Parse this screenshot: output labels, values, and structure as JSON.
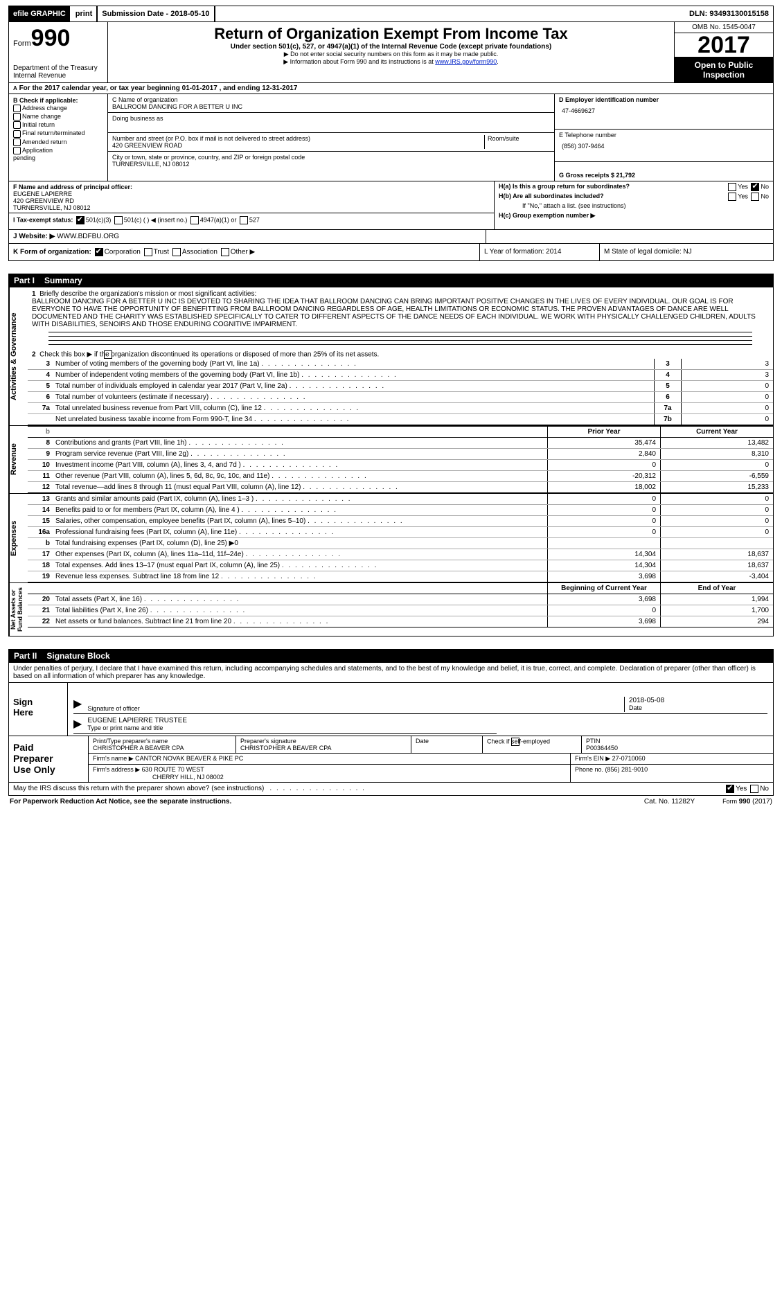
{
  "top": {
    "efile": "efile GRAPHIC",
    "print": "print",
    "sub": "Submission Date - 2018-05-10",
    "dln": "DLN: 93493130015158"
  },
  "header": {
    "form": "Form",
    "n990": "990",
    "dept": "Department of the Treasury\nInternal Revenue",
    "title": "Return of Organization Exempt From Income Tax",
    "line1": "Under section 501(c), 527, or 4947(a)(1) of the Internal Revenue Code (except private foundations)",
    "line2": "▶ Do not enter social security numbers on this form as it may be made public.",
    "line3": "▶ Information about Form 990 and its instructions is at ",
    "link": "www.IRS.gov/form990",
    "linkdot": ".",
    "omb": "OMB No. 1545-0047",
    "yr": "2017",
    "open": "Open to Public Inspection"
  },
  "A": "For the 2017 calendar year, or tax year beginning 01-01-2017   , and ending 12-31-2017",
  "B": {
    "h": "B Check if applicable:",
    "opts": [
      "Address change",
      "Name change",
      "Initial return",
      "Final return/terminated",
      "Amended return",
      "Application\npending"
    ]
  },
  "C": {
    "nLbl": "C Name of organization",
    "name": "BALLROOM DANCING FOR A BETTER U INC",
    "dbaLbl": "Doing business as",
    "addrLbl": "Number and street (or P.O. box if mail is not delivered to street address)",
    "addr": "420 GREENVIEW ROAD",
    "room": "Room/suite",
    "cityLbl": "City or town, state or province, country, and ZIP or foreign postal code",
    "city": "TURNERSVILLE, NJ  08012"
  },
  "D": {
    "lbl": "D Employer identification number",
    "val": "47-4669627",
    "E": "E Telephone number",
    "phone": "(856) 307-9464",
    "G": "G Gross receipts $ 21,792"
  },
  "F": {
    "lbl": "F  Name and address of principal officer:",
    "n": "EUGENE LAPIERRE",
    "a1": "420 GREENVIEW RD",
    "a2": "TURNERSVILLE, NJ  08012"
  },
  "H": {
    "a": "H(a)  Is this a group return for subordinates?",
    "b": "H(b)  Are all subordinates included?",
    "bnote": "If \"No,\" attach a list. (see instructions)",
    "c": "H(c)  Group exemption number ▶",
    "y": "Yes",
    "n": "No"
  },
  "I": {
    "lbl": "I    Tax-exempt status:",
    "o1": "501(c)(3)",
    "o2": "501(c) (  ) ◀ (insert no.)",
    "o3": "4947(a)(1) or",
    "o4": "527"
  },
  "J": {
    "lbl": "J   Website: ▶",
    "val": "  WWW.BDFBU.ORG"
  },
  "K": {
    "lbl": "K Form of organization:",
    "o": [
      "Corporation",
      "Trust",
      "Association",
      "Other ▶"
    ]
  },
  "L": {
    "lbl": "L Year of formation: 2014"
  },
  "M": {
    "lbl": "M State of legal domicile: NJ"
  },
  "P1": {
    "n": "Part I",
    "t": "Summary"
  },
  "AG": {
    "side": "Activities & Governance",
    "l1": "Briefly describe the organization's mission or most significant activities:",
    "mission": "BALLROOM DANCING FOR A BETTER U INC IS DEVOTED TO SHARING THE IDEA THAT BALLROOM DANCING CAN BRING IMPORTANT POSITIVE CHANGES IN THE LIVES OF EVERY INDIVIDUAL. OUR GOAL IS FOR EVERYONE TO HAVE THE OPPORTUNITY OF BENEFITTING FROM BALLROOM DANCING REGARDLESS OF AGE, HEALTH LIMITATIONS OR ECONOMIC STATUS. THE PROVEN ADVANTAGES OF DANCE ARE WELL DOCUMENTED AND THE CHARITY WAS ESTABLISHED SPECIFICALLY TO CATER TO DIFFERENT ASPECTS OF THE DANCE NEEDS OF EACH INDIVIDUAL. WE WORK WITH PHYSICALLY CHALLENGED CHILDREN, ADULTS WITH DISABILITIES, SENOIRS AND THOSE ENDURING COGNITIVE IMPAIRMENT.",
    "l2": "Check this box ▶     if the organization discontinued its operations or disposed of more than 25% of its net assets.",
    "rows": [
      {
        "n": "3",
        "t": "Number of voting members of the governing body (Part VI, line 1a)",
        "c": "3",
        "v": "3"
      },
      {
        "n": "4",
        "t": "Number of independent voting members of the governing body (Part VI, line 1b)",
        "c": "4",
        "v": "3"
      },
      {
        "n": "5",
        "t": "Total number of individuals employed in calendar year 2017 (Part V, line 2a)",
        "c": "5",
        "v": "0"
      },
      {
        "n": "6",
        "t": "Total number of volunteers (estimate if necessary)",
        "c": "6",
        "v": "0"
      },
      {
        "n": "7a",
        "t": "Total unrelated business revenue from Part VIII, column (C), line 12",
        "c": "7a",
        "v": "0"
      },
      {
        "n": "",
        "t": "Net unrelated business taxable income from Form 990-T, line 34",
        "c": "7b",
        "v": "0"
      }
    ]
  },
  "Rev": {
    "side": "Revenue",
    "head": [
      "Prior Year",
      "Current Year"
    ],
    "rows": [
      {
        "n": "8",
        "t": "Contributions and grants (Part VIII, line 1h)",
        "p": "35,474",
        "c": "13,482"
      },
      {
        "n": "9",
        "t": "Program service revenue (Part VIII, line 2g)",
        "p": "2,840",
        "c": "8,310"
      },
      {
        "n": "10",
        "t": "Investment income (Part VIII, column (A), lines 3, 4, and 7d )",
        "p": "0",
        "c": "0"
      },
      {
        "n": "11",
        "t": "Other revenue (Part VIII, column (A), lines 5, 6d, 8c, 9c, 10c, and 11e)",
        "p": "-20,312",
        "c": "-6,559"
      },
      {
        "n": "12",
        "t": "Total revenue—add lines 8 through 11 (must equal Part VIII, column (A), line 12)",
        "p": "18,002",
        "c": "15,233"
      }
    ]
  },
  "Exp": {
    "side": "Expenses",
    "rows": [
      {
        "n": "13",
        "t": "Grants and similar amounts paid (Part IX, column (A), lines 1–3 )",
        "p": "0",
        "c": "0"
      },
      {
        "n": "14",
        "t": "Benefits paid to or for members (Part IX, column (A), line 4 )",
        "p": "0",
        "c": "0"
      },
      {
        "n": "15",
        "t": "Salaries, other compensation, employee benefits (Part IX, column (A), lines 5–10)",
        "p": "0",
        "c": "0"
      },
      {
        "n": "16a",
        "t": "Professional fundraising fees (Part IX, column (A), line 11e)",
        "p": "0",
        "c": "0"
      },
      {
        "n": "b",
        "t": "Total fundraising expenses (Part IX, column (D), line 25) ▶0",
        "p": "",
        "c": ""
      },
      {
        "n": "17",
        "t": "Other expenses (Part IX, column (A), lines 11a–11d, 11f–24e)",
        "p": "14,304",
        "c": "18,637"
      },
      {
        "n": "18",
        "t": "Total expenses. Add lines 13–17 (must equal Part IX, column (A), line 25)",
        "p": "14,304",
        "c": "18,637"
      },
      {
        "n": "19",
        "t": "Revenue less expenses. Subtract line 18 from line 12",
        "p": "3,698",
        "c": "-3,404"
      }
    ]
  },
  "Net": {
    "side": "Net Assets or\nFund Balances",
    "head": [
      "Beginning of Current Year",
      "End of Year"
    ],
    "rows": [
      {
        "n": "20",
        "t": "Total assets (Part X, line 16)",
        "p": "3,698",
        "c": "1,994"
      },
      {
        "n": "21",
        "t": "Total liabilities (Part X, line 26)",
        "p": "0",
        "c": "1,700"
      },
      {
        "n": "22",
        "t": "Net assets or fund balances. Subtract line 21 from line 20",
        "p": "3,698",
        "c": "294"
      }
    ]
  },
  "P2": {
    "n": "Part II",
    "t": "Signature Block"
  },
  "perj": "Under penalties of perjury, I declare that I have examined this return, including accompanying schedules and statements, and to the best of my knowledge and belief, it is true, correct, and complete. Declaration of preparer (other than officer) is based on all information of which preparer has any knowledge.",
  "sign": {
    "here": "Sign\nHere",
    "s1": "Signature of officer",
    "d1": "Date",
    "d1v": "2018-05-08",
    "s2": "EUGENE LAPIERRE  TRUSTEE",
    "s2l": "Type or print name and title"
  },
  "paid": {
    "l": "Paid\nPreparer\nUse Only",
    "c1": "Print/Type preparer's name",
    "c1v": "CHRISTOPHER A BEAVER CPA",
    "c2": "Preparer's signature",
    "c2v": "CHRISTOPHER A BEAVER CPA",
    "c3": "Date",
    "c4": "Check        if self-employed",
    "c5": "PTIN",
    "c5v": "P00364450",
    "f": "Firm's name    ▶",
    "fv": "CANTOR NOVAK BEAVER & PIKE PC",
    "fe": "Firm's EIN ▶ 27-0710060",
    "fa": "Firm's address ▶",
    "fav": "630 ROUTE 70 WEST",
    "fav2": "CHERRY HILL, NJ  08002",
    "fp": "Phone no. (856) 281-9010"
  },
  "last": {
    "t": "May the IRS discuss this return with the preparer shown above? (see instructions)",
    "y": "Yes",
    "n": "No"
  },
  "foot": {
    "l": "For Paperwork Reduction Act Notice, see the separate instructions.",
    "m": "Cat. No. 11282Y",
    "r": "Form 990 (2017)"
  }
}
